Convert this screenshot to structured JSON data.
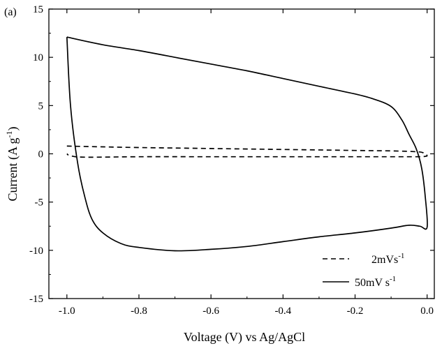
{
  "chart_data": {
    "type": "line",
    "panel_label": "(a)",
    "xlabel": "Voltage (V) vs Ag/AgCl",
    "ylabel_main": "Current (A g",
    "ylabel_sup": "-1",
    "ylabel_end": ")",
    "xlim": [
      -1.05,
      0.02
    ],
    "ylim": [
      -15,
      15
    ],
    "xticks": [
      -1.0,
      -0.8,
      -0.6,
      -0.4,
      -0.2,
      0.0
    ],
    "xtick_labels": [
      "-1.0",
      "-0.8",
      "-0.6",
      "-0.4",
      "-0.2",
      "0.0"
    ],
    "yticks": [
      -15,
      -10,
      -5,
      0,
      5,
      10,
      15
    ],
    "ytick_labels": [
      "-15",
      "-10",
      "-5",
      "0",
      "5",
      "10",
      "15"
    ],
    "legend_position": "bottom-right",
    "series": [
      {
        "name_main": "2mVs",
        "name_sup": "-1",
        "style": "dashed",
        "color": "#000000",
        "x": [
          -1.0,
          -0.9,
          -0.8,
          -0.6,
          -0.4,
          -0.2,
          -0.1,
          -0.03,
          -0.01,
          0.0,
          -0.01,
          -0.03,
          -0.1,
          -0.2,
          -0.4,
          -0.6,
          -0.8,
          -0.95,
          -0.99,
          -1.0
        ],
        "y": [
          0.8,
          0.72,
          0.65,
          0.55,
          0.45,
          0.35,
          0.3,
          0.22,
          0.1,
          -0.2,
          -0.28,
          -0.3,
          -0.3,
          -0.3,
          -0.3,
          -0.3,
          -0.3,
          -0.35,
          -0.2,
          0.0
        ]
      },
      {
        "name_main": "50mV s",
        "name_sup": "-1",
        "style": "solid",
        "color": "#000000",
        "x": [
          -1.0,
          -0.9,
          -0.8,
          -0.7,
          -0.6,
          -0.5,
          -0.4,
          -0.3,
          -0.2,
          -0.15,
          -0.1,
          -0.07,
          -0.05,
          -0.03,
          -0.015,
          -0.005,
          0.0,
          -0.02,
          -0.05,
          -0.1,
          -0.2,
          -0.3,
          -0.4,
          -0.5,
          -0.6,
          -0.7,
          -0.8,
          -0.85,
          -0.9,
          -0.93,
          -0.95,
          -0.97,
          -0.99,
          -1.0
        ],
        "y": [
          12.1,
          11.3,
          10.7,
          10.0,
          9.3,
          8.6,
          7.8,
          7.0,
          6.2,
          5.7,
          4.9,
          3.5,
          2.0,
          0.5,
          -1.5,
          -4.5,
          -7.6,
          -7.5,
          -7.4,
          -7.7,
          -8.2,
          -8.6,
          -9.1,
          -9.6,
          -9.9,
          -10.05,
          -9.7,
          -9.3,
          -8.2,
          -6.8,
          -4.5,
          -1.0,
          5.0,
          12.1
        ]
      }
    ]
  }
}
